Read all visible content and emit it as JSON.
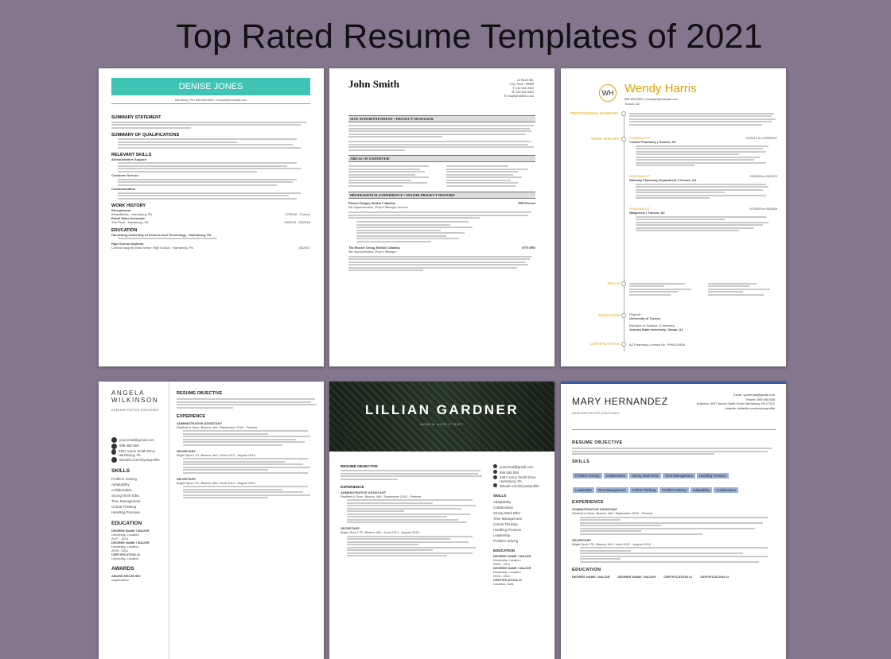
{
  "page_title": "Top Rated Resume Templates of 2021",
  "templates": [
    {
      "name": "DENISE JONES",
      "contact": "Harrisburg, PA • 555-555-5555 • example@example.com",
      "sections": [
        "SUMMARY STATEMENT",
        "SUMMARY OF QUALIFICATIONS",
        "RELEVANT SKILLS",
        "WORK HISTORY",
        "EDUCATION"
      ],
      "subsections": [
        "Administrative Support",
        "Customer Service",
        "Communication"
      ],
      "jobs": [
        {
          "title": "Receptionist",
          "org": "iHeartMedia - Harrisburg, PA",
          "date": "07/2016 - Current"
        },
        {
          "title": "Retail Sales Associate",
          "org": "The Plum - Harrisburg, PA",
          "date": "05/2015 - 05/2016"
        }
      ],
      "education": [
        {
          "school": "Harrisburg University of Science And Technology - Harrisburg, PA"
        },
        {
          "school": "High School Diploma",
          "detail": "Central Dauphin East Senior High School - Harrisburg, PA",
          "date": "06/2017"
        }
      ]
    },
    {
      "name": "John Smith",
      "contact": [
        "22 Street Rd.",
        "City, State • 00000",
        "T: 222-222-2222",
        "H: 222-222-2222",
        "E: email@address.com"
      ],
      "sections": [
        "SITE SUPERINTENDENT • PROJECT MANAGER",
        "AREAS OF EXPERTISE",
        "PROFESSIONAL EXPERIENCE • MAJOR PROJECT HISTORY"
      ],
      "jobs": [
        {
          "org": "Pioneer Designs, British Columbia",
          "role": "Site Superintendent, Project Manager, Investor",
          "date": "2003-Present"
        },
        {
          "org": "The Pioneer Group, British Columbia",
          "role": "Site Superintendent, Project Manager",
          "date": "1978-2003"
        }
      ]
    },
    {
      "initials": "WH",
      "name": "Wendy Harris",
      "contact": "555-555-5555 | example@example.com",
      "location": "Tucson, AZ",
      "labels": [
        "PROFESSIONAL SUMMARY",
        "WORK HISTORY",
        "SKILLS",
        "EDUCATION",
        "CERTIFICATIONS"
      ],
      "jobs": [
        {
          "title": "PHARMACIST",
          "org": "Costco Pharmacy | Tucson, AZ",
          "date": "10/2013 to CURRENT"
        },
        {
          "title": "PHARMACIST",
          "org": "Safeway Pharmacy Department | Tucson, AZ",
          "date": "05/2009 to 09/2013"
        },
        {
          "title": "PHARMACIST",
          "org": "Walgreens | Tucson, AZ",
          "date": "07/2004 to 05/2009"
        }
      ],
      "education": [
        "PharmD",
        "University of Tucson",
        "Bachelor of Science | Chemistry",
        "Arizona State University, Tempe, AZ"
      ],
      "certification": "AZ Pharmacy License No. PHM123456"
    },
    {
      "name_line1": "ANGELA",
      "name_line2": "WILKINSON",
      "role": "ADMINISTRATIVE ASSISTANT",
      "contact": [
        "youremail@gmail.com",
        "895 555 555",
        "4397 Aaron Smith Drive Harrisburg, PA",
        "linkedin.com/in/yourprofile"
      ],
      "skills_heading": "SKILLS",
      "skills": [
        "Problem Solving",
        "Adaptability",
        "Collaboration",
        "Strong Work Ethic",
        "Time Management",
        "Critical Thinking",
        "Handling Pressure"
      ],
      "education_heading": "EDUCATION",
      "education": [
        "DEGREE NAME / MAJOR",
        "University, Location",
        "2007 - 2013",
        "DEGREE NAME / MAJOR",
        "University, Location",
        "2006 - 2011",
        "CERTIFICATION #1",
        "University, Location"
      ],
      "awards_heading": "AWARDS",
      "awards": [
        "AWARD RECEIVED",
        "organization"
      ],
      "objective_heading": "RESUME OBJECTIVE",
      "experience_heading": "EXPERIENCE",
      "jobs": [
        {
          "title": "ADMINISTRATIVE ASSISTANT",
          "org": "Redford & Sons, Boston, MA / September 2016 - Present"
        },
        {
          "title": "SECRETARY",
          "org": "Bright Spot LTD, Boston, MA / June 2013 - August 2016"
        },
        {
          "title": "SECRETARY",
          "org": "Bright Spot LTD, Boston, MA / June 2013 - August 2016"
        }
      ]
    },
    {
      "name": "LILLIAN GARDNER",
      "role": "ADMIN ASSISTANT",
      "objective_heading": "RESUME OBJECTIVE",
      "experience_heading": "EXPERIENCE",
      "jobs": [
        {
          "title": "ADMINISTRATIVE ASSISTANT",
          "org": "Redford & Sons, Boston, MA / September 2016 - Present"
        },
        {
          "title": "SECRETARY",
          "org": "Bright Spot LTD, Boston, MA / June 2013 - August 2016"
        }
      ],
      "contact": [
        "youremail@gmail.com",
        "895 555 555",
        "4397 Aaron Smith Drive Harrisburg, PA",
        "linkedin.com/in/yourprofile"
      ],
      "skills_heading": "SKILLS",
      "skills": [
        "Adaptability",
        "Collaboration",
        "Strong Work Ethic",
        "Time Management",
        "Critical Thinking",
        "Handling Pressure",
        "Leadership",
        "Problem Solving"
      ],
      "education_heading": "EDUCATION",
      "education": [
        "DEGREE NAME / MAJOR",
        "University, Location",
        "2006 - 2011",
        "DEGREE NAME / MAJOR",
        "University, Location",
        "2006 - 2011",
        "CERTIFICATION #1",
        "Location, Date"
      ]
    },
    {
      "name": "MARY HERNANDEZ",
      "role": "ADMINISTRATIVE ASSISTANT",
      "contact": [
        "Email: youremail@gmail.com",
        "Phone: 895 555 555",
        "Address: 4397 Aaron Smith Drive Harrisburg, PA 17101",
        "Linkedin: linkedin.com/in/yourprofile"
      ],
      "objective_heading": "RESUME OBJECTIVE",
      "skills_heading": "SKILLS",
      "skills": [
        "Problem Solving",
        "Collaboration",
        "Strong Work Ethic",
        "Time Management",
        "Handling Pressure",
        "Leadership",
        "Time Management",
        "Critical Thinking",
        "Problem Solving",
        "Adaptability",
        "Collaboration"
      ],
      "experience_heading": "EXPERIENCE",
      "jobs": [
        {
          "title": "ADMINISTRATIVE ASSISTANT",
          "org": "Redford & Sons, Boston, MA / September 2016 - Present"
        },
        {
          "title": "SECRETARY",
          "org": "Bright Spot LTD, Boston, MA / June 2013 - August 2016"
        }
      ],
      "education_heading": "EDUCATION",
      "education": [
        "DEGREE NAME / MAJOR",
        "DEGREE NAME / MAJOR",
        "CERTIFICATION #1",
        "CERTIFICATION #2"
      ]
    }
  ]
}
